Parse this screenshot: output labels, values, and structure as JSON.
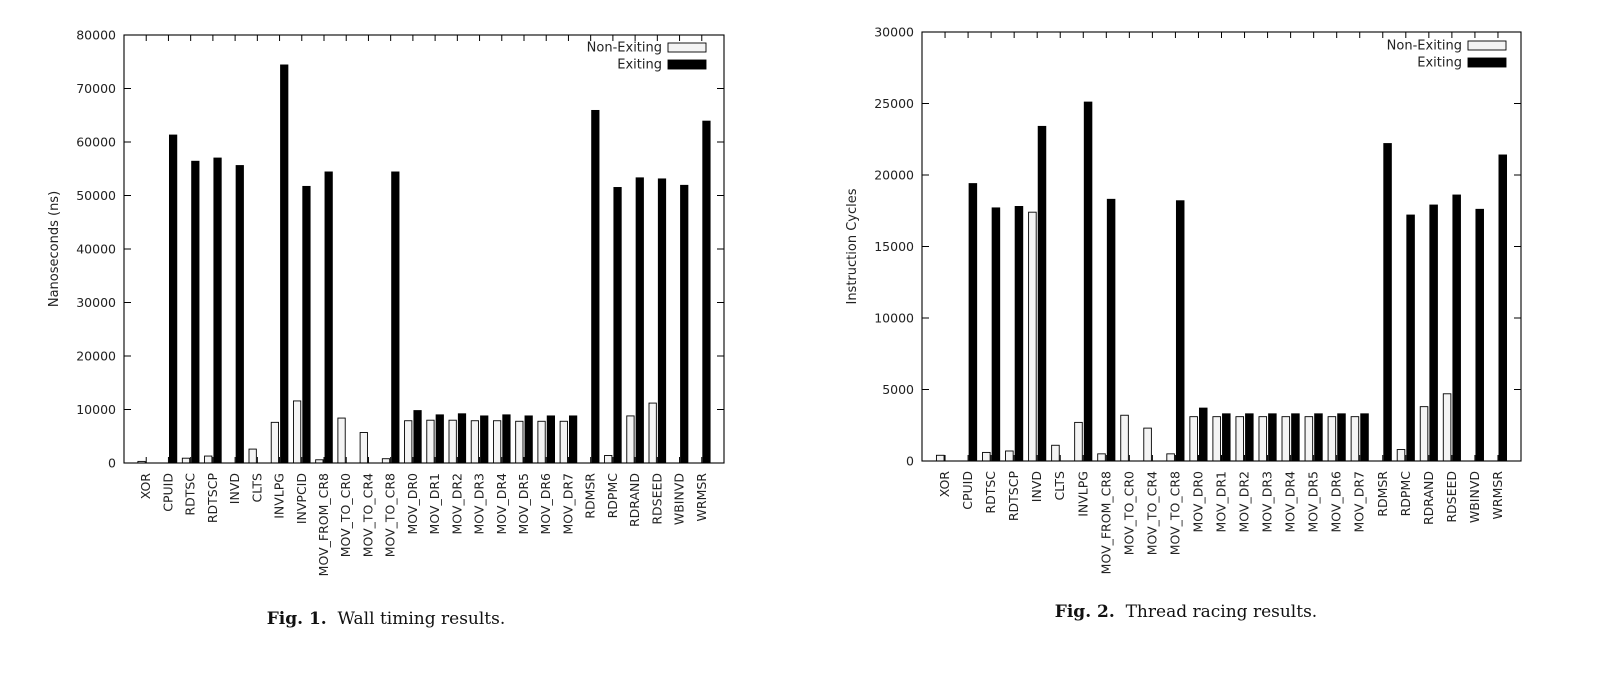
{
  "colors": {
    "non_exiting": "#f4f4f4",
    "exiting": "#000000",
    "frame": "#000000",
    "background": "#ffffff"
  },
  "chart_data": [
    {
      "type": "bar",
      "caption_label": "Fig. 1.",
      "caption_text": "Wall timing results.",
      "title": "",
      "xlabel": "",
      "ylabel": "Nanoseconds (ns)",
      "ylim": [
        0,
        80000
      ],
      "yticks": [
        0,
        10000,
        20000,
        30000,
        40000,
        50000,
        60000,
        70000,
        80000
      ],
      "grid": false,
      "legend_position": "top-right",
      "categories": [
        "XOR",
        "CPUID",
        "RDTSC",
        "RDTSCP",
        "INVD",
        "CLTS",
        "INVLPG",
        "INVPCID",
        "MOV_FROM_CR8",
        "MOV_TO_CR0",
        "MOV_TO_CR4",
        "MOV_TO_CR8",
        "MOV_DR0",
        "MOV_DR1",
        "MOV_DR2",
        "MOV_DR3",
        "MOV_DR4",
        "MOV_DR5",
        "MOV_DR6",
        "MOV_DR7",
        "RDMSR",
        "RDPMC",
        "RDRAND",
        "RDSEED",
        "WBINVD",
        "WRMSR"
      ],
      "series": [
        {
          "name": "Non-Exiting",
          "values": [
            300,
            0,
            900,
            1300,
            0,
            2600,
            7600,
            11600,
            600,
            8400,
            5700,
            800,
            7900,
            8000,
            8000,
            7900,
            7900,
            7800,
            7800,
            7800,
            0,
            1400,
            8800,
            11200,
            0,
            0
          ]
        },
        {
          "name": "Exiting",
          "values": [
            0,
            61300,
            56400,
            57000,
            55600,
            0,
            74400,
            51700,
            54400,
            0,
            0,
            54400,
            9800,
            9000,
            9200,
            8800,
            9000,
            8800,
            8800,
            8800,
            65900,
            51500,
            53300,
            53100,
            51900,
            63900
          ]
        }
      ]
    },
    {
      "type": "bar",
      "caption_label": "Fig. 2.",
      "caption_text": "Thread racing results.",
      "title": "",
      "xlabel": "",
      "ylabel": "Instruction Cycles",
      "ylim": [
        0,
        30000
      ],
      "yticks": [
        0,
        5000,
        10000,
        15000,
        20000,
        25000,
        30000
      ],
      "grid": false,
      "legend_position": "top-right",
      "categories": [
        "XOR",
        "CPUID",
        "RDTSC",
        "RDTSCP",
        "INVD",
        "CLTS",
        "INVLPG",
        "MOV_FROM_CR8",
        "MOV_TO_CR0",
        "MOV_TO_CR4",
        "MOV_TO_CR8",
        "MOV_DR0",
        "MOV_DR1",
        "MOV_DR2",
        "MOV_DR3",
        "MOV_DR4",
        "MOV_DR5",
        "MOV_DR6",
        "MOV_DR7",
        "RDMSR",
        "RDPMC",
        "RDRAND",
        "RDSEED",
        "WBINVD",
        "WRMSR"
      ],
      "series": [
        {
          "name": "Non-Exiting",
          "values": [
            400,
            0,
            600,
            700,
            17400,
            1100,
            2700,
            500,
            3200,
            2300,
            500,
            3100,
            3100,
            3100,
            3100,
            3100,
            3100,
            3100,
            3100,
            0,
            800,
            3800,
            4700,
            0,
            0
          ]
        },
        {
          "name": "Exiting",
          "values": [
            0,
            19400,
            17700,
            17800,
            23400,
            0,
            25100,
            18300,
            0,
            0,
            18200,
            3700,
            3300,
            3300,
            3300,
            3300,
            3300,
            3300,
            3300,
            22200,
            17200,
            17900,
            18600,
            17600,
            21400
          ]
        }
      ]
    }
  ]
}
